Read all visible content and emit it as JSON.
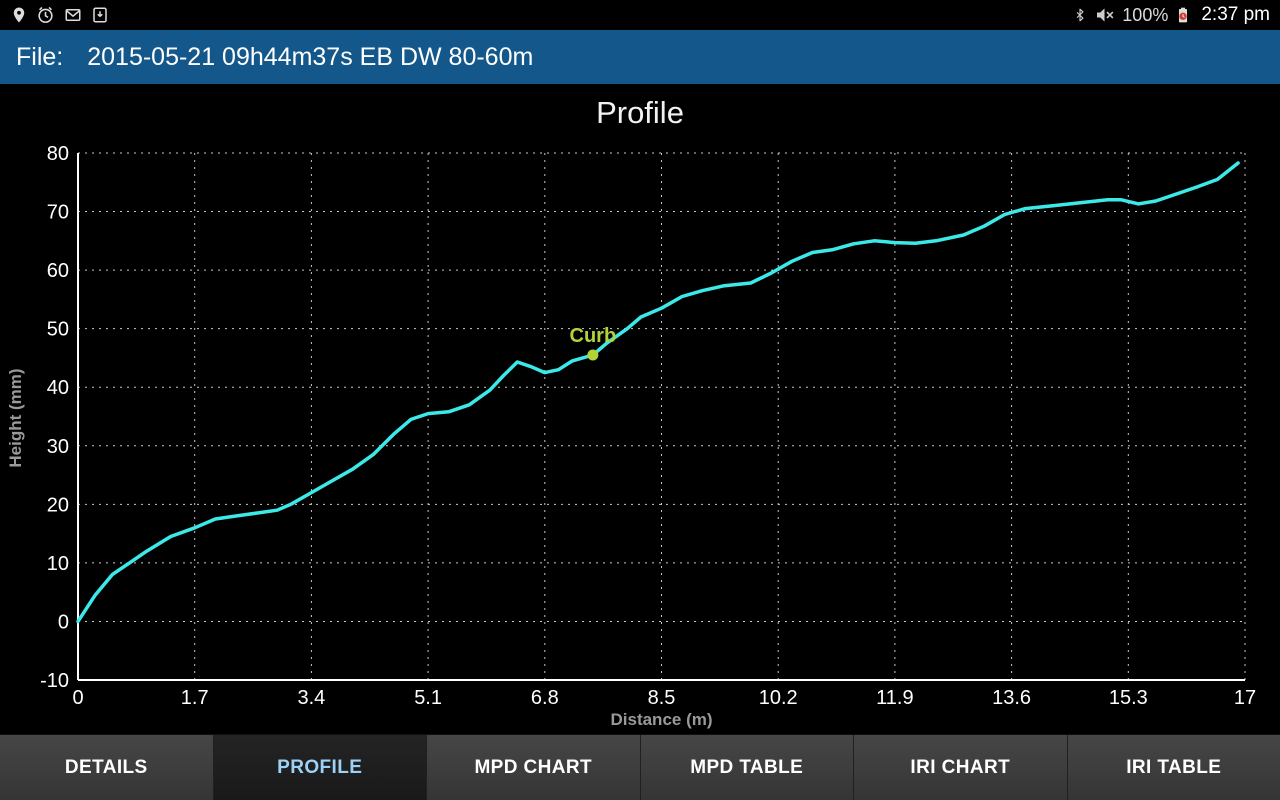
{
  "colors": {
    "file_bar_bg": "#14578b",
    "active_tab_text": "#9cd2f7"
  },
  "status_bar": {
    "left_icons": [
      "location-icon",
      "alarm-icon",
      "gmail-icon",
      "download-icon"
    ],
    "right_icons": [
      "bluetooth-icon",
      "mute-icon",
      "battery-icon"
    ],
    "battery_pct": "100%",
    "time": "2:37 pm"
  },
  "file_bar": {
    "label": "File:",
    "value": "2015-05-21 09h44m37s EB DW 80-60m"
  },
  "chart_data": {
    "type": "line",
    "title": "Profile",
    "xlabel": "Distance (m)",
    "ylabel": "Height (mm)",
    "xlim": [
      0,
      17
    ],
    "ylim": [
      -10,
      80
    ],
    "x_ticks": [
      "0",
      "1.7",
      "3.4",
      "5.1",
      "6.8",
      "8.5",
      "10.2",
      "11.9",
      "13.6",
      "15.3",
      "17"
    ],
    "y_ticks": [
      "-10",
      "0",
      "10",
      "20",
      "30",
      "40",
      "50",
      "60",
      "70",
      "80"
    ],
    "grid": true,
    "legend": false,
    "line_color": "#3ce9e9",
    "annotation": {
      "label": "Curb",
      "x": 7.5,
      "y": 45.5,
      "color": "#b2d338"
    },
    "series": [
      {
        "name": "Profile",
        "x": [
          0,
          0.25,
          0.5,
          0.75,
          1.0,
          1.35,
          1.7,
          2.0,
          2.3,
          2.6,
          2.9,
          3.1,
          3.4,
          3.7,
          4.0,
          4.3,
          4.6,
          4.85,
          5.1,
          5.4,
          5.7,
          6.0,
          6.2,
          6.4,
          6.6,
          6.8,
          7.0,
          7.2,
          7.5,
          7.7,
          8.0,
          8.2,
          8.5,
          8.8,
          9.1,
          9.4,
          9.8,
          10.1,
          10.4,
          10.7,
          11.0,
          11.3,
          11.6,
          11.9,
          12.2,
          12.5,
          12.9,
          13.2,
          13.5,
          13.8,
          14.2,
          14.6,
          15.0,
          15.2,
          15.45,
          15.7,
          16.0,
          16.3,
          16.6,
          16.9
        ],
        "y": [
          0,
          4.5,
          8,
          10,
          12,
          14.5,
          16,
          17.5,
          18,
          18.5,
          19,
          20,
          22,
          24,
          26,
          28.5,
          32,
          34.5,
          35.5,
          35.8,
          37,
          39.5,
          42,
          44.3,
          43.5,
          42.5,
          43,
          44.5,
          45.5,
          47.5,
          50,
          52,
          53.5,
          55.5,
          56.5,
          57.3,
          57.8,
          59.5,
          61.5,
          63,
          63.5,
          64.5,
          65,
          64.7,
          64.6,
          65,
          66,
          67.5,
          69.5,
          70.5,
          71,
          71.5,
          72,
          72,
          71.3,
          71.8,
          73,
          74.2,
          75.5,
          78.3
        ]
      }
    ]
  },
  "tabs": [
    {
      "label": "DETAILS",
      "active": false
    },
    {
      "label": "PROFILE",
      "active": true
    },
    {
      "label": "MPD CHART",
      "active": false
    },
    {
      "label": "MPD TABLE",
      "active": false
    },
    {
      "label": "IRI CHART",
      "active": false
    },
    {
      "label": "IRI TABLE",
      "active": false
    }
  ]
}
